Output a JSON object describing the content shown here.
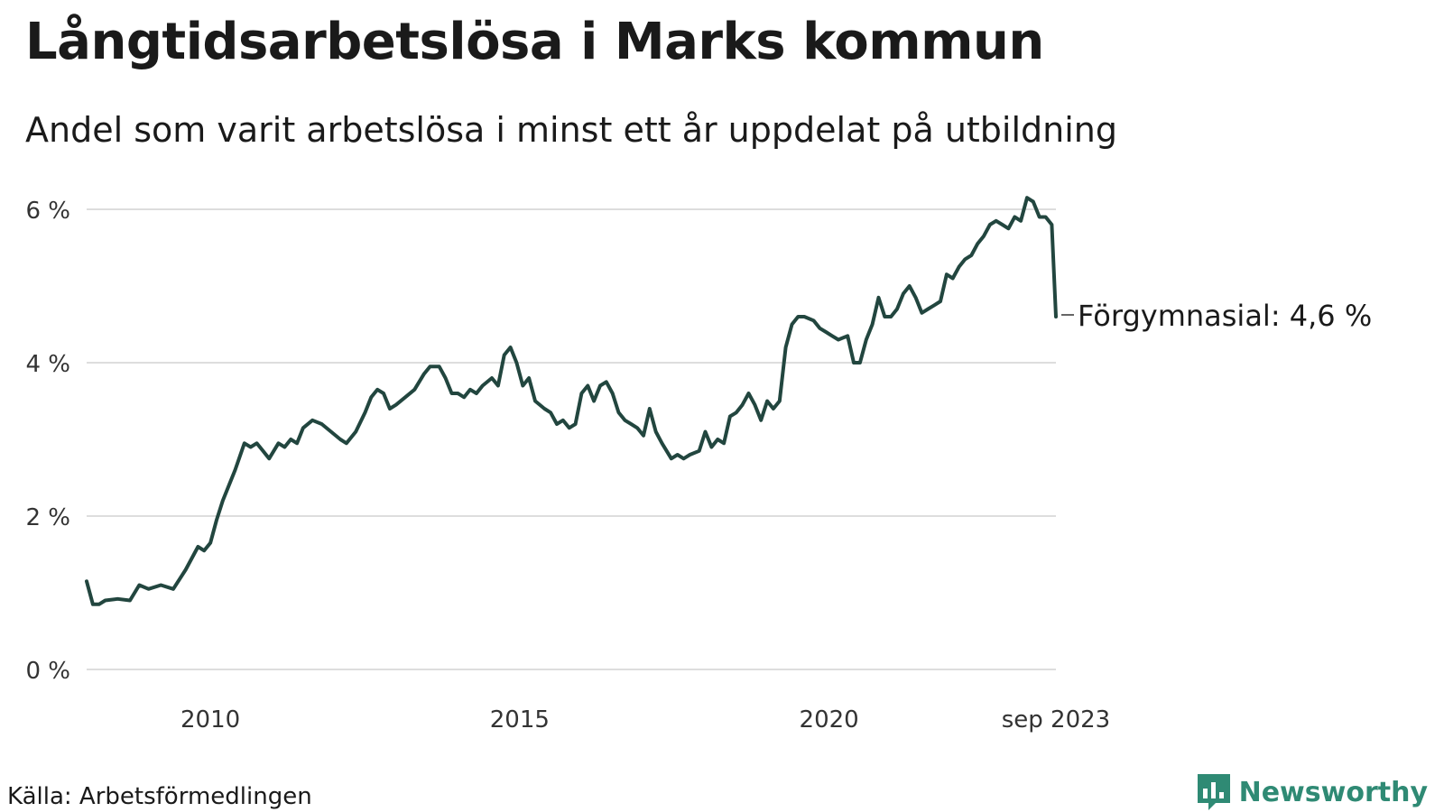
{
  "header": {
    "title": "Långtidsarbetslösa i Marks kommun",
    "subtitle": "Andel som varit arbetslösa i minst ett år uppdelat på utbildning"
  },
  "footer": {
    "source": "Källa: Arbetsförmedlingen",
    "brand": "Newsworthy",
    "brand_icon": "bar-chart-icon",
    "brand_color": "#2f8a74"
  },
  "chart_data": {
    "type": "line",
    "title": "Långtidsarbetslösa i Marks kommun",
    "subtitle": "Andel som varit arbetslösa i minst ett år uppdelat på utbildning",
    "xlabel": "",
    "ylabel": "",
    "x_start": 2008.0,
    "x_end": 2023.667,
    "xlim": [
      2008.0,
      2023.667
    ],
    "ylim": [
      0,
      6.3
    ],
    "y_ticks": [
      0,
      2,
      4,
      6
    ],
    "y_tick_labels": [
      "0 %",
      "2 %",
      "4 %",
      "6 %"
    ],
    "x_ticks": [
      2010,
      2015,
      2020,
      2023.667
    ],
    "x_tick_labels": [
      "2010",
      "2015",
      "2020",
      "sep 2023"
    ],
    "grid": true,
    "legend": "direct labels at line ends (right)",
    "series": [
      {
        "name": "Förgymnasial",
        "end_label": "Förgymnasial: 4,6 %",
        "color": "#22463f",
        "points": [
          [
            2008.0,
            1.15
          ],
          [
            2008.1,
            0.85
          ],
          [
            2008.2,
            0.85
          ],
          [
            2008.3,
            0.9
          ],
          [
            2008.5,
            0.92
          ],
          [
            2008.7,
            0.9
          ],
          [
            2008.85,
            1.1
          ],
          [
            2009.0,
            1.05
          ],
          [
            2009.2,
            1.1
          ],
          [
            2009.4,
            1.05
          ],
          [
            2009.6,
            1.3
          ],
          [
            2009.8,
            1.6
          ],
          [
            2009.9,
            1.55
          ],
          [
            2010.0,
            1.65
          ],
          [
            2010.1,
            1.95
          ],
          [
            2010.2,
            2.2
          ],
          [
            2010.4,
            2.6
          ],
          [
            2010.55,
            2.95
          ],
          [
            2010.65,
            2.9
          ],
          [
            2010.75,
            2.95
          ],
          [
            2010.85,
            2.85
          ],
          [
            2010.95,
            2.75
          ],
          [
            2011.1,
            2.95
          ],
          [
            2011.2,
            2.9
          ],
          [
            2011.3,
            3.0
          ],
          [
            2011.4,
            2.95
          ],
          [
            2011.5,
            3.15
          ],
          [
            2011.65,
            3.25
          ],
          [
            2011.8,
            3.2
          ],
          [
            2011.95,
            3.1
          ],
          [
            2012.1,
            3.0
          ],
          [
            2012.2,
            2.95
          ],
          [
            2012.35,
            3.1
          ],
          [
            2012.5,
            3.35
          ],
          [
            2012.6,
            3.55
          ],
          [
            2012.7,
            3.65
          ],
          [
            2012.8,
            3.6
          ],
          [
            2012.9,
            3.4
          ],
          [
            2013.0,
            3.45
          ],
          [
            2013.15,
            3.55
          ],
          [
            2013.3,
            3.65
          ],
          [
            2013.45,
            3.85
          ],
          [
            2013.55,
            3.95
          ],
          [
            2013.7,
            3.95
          ],
          [
            2013.8,
            3.8
          ],
          [
            2013.9,
            3.6
          ],
          [
            2014.0,
            3.6
          ],
          [
            2014.1,
            3.55
          ],
          [
            2014.2,
            3.65
          ],
          [
            2014.3,
            3.6
          ],
          [
            2014.4,
            3.7
          ],
          [
            2014.55,
            3.8
          ],
          [
            2014.65,
            3.7
          ],
          [
            2014.75,
            4.1
          ],
          [
            2014.85,
            4.2
          ],
          [
            2014.95,
            4.0
          ],
          [
            2015.05,
            3.7
          ],
          [
            2015.15,
            3.8
          ],
          [
            2015.25,
            3.5
          ],
          [
            2015.4,
            3.4
          ],
          [
            2015.5,
            3.35
          ],
          [
            2015.6,
            3.2
          ],
          [
            2015.7,
            3.25
          ],
          [
            2015.8,
            3.15
          ],
          [
            2015.9,
            3.2
          ],
          [
            2016.0,
            3.6
          ],
          [
            2016.1,
            3.7
          ],
          [
            2016.2,
            3.5
          ],
          [
            2016.3,
            3.7
          ],
          [
            2016.4,
            3.75
          ],
          [
            2016.5,
            3.6
          ],
          [
            2016.6,
            3.35
          ],
          [
            2016.7,
            3.25
          ],
          [
            2016.8,
            3.2
          ],
          [
            2016.9,
            3.15
          ],
          [
            2017.0,
            3.05
          ],
          [
            2017.1,
            3.4
          ],
          [
            2017.2,
            3.1
          ],
          [
            2017.3,
            2.95
          ],
          [
            2017.45,
            2.75
          ],
          [
            2017.55,
            2.8
          ],
          [
            2017.65,
            2.75
          ],
          [
            2017.75,
            2.8
          ],
          [
            2017.9,
            2.85
          ],
          [
            2018.0,
            3.1
          ],
          [
            2018.1,
            2.9
          ],
          [
            2018.2,
            3.0
          ],
          [
            2018.3,
            2.95
          ],
          [
            2018.4,
            3.3
          ],
          [
            2018.5,
            3.35
          ],
          [
            2018.6,
            3.45
          ],
          [
            2018.7,
            3.6
          ],
          [
            2018.8,
            3.45
          ],
          [
            2018.9,
            3.25
          ],
          [
            2019.0,
            3.5
          ],
          [
            2019.1,
            3.4
          ],
          [
            2019.2,
            3.5
          ],
          [
            2019.3,
            4.2
          ],
          [
            2019.4,
            4.5
          ],
          [
            2019.5,
            4.6
          ],
          [
            2019.6,
            4.6
          ],
          [
            2019.75,
            4.55
          ],
          [
            2019.85,
            4.45
          ],
          [
            2019.95,
            4.4
          ],
          [
            2020.05,
            4.35
          ],
          [
            2020.15,
            4.3
          ],
          [
            2020.3,
            4.35
          ],
          [
            2020.4,
            4.0
          ],
          [
            2020.5,
            4.0
          ],
          [
            2020.6,
            4.3
          ],
          [
            2020.7,
            4.5
          ],
          [
            2020.8,
            4.85
          ],
          [
            2020.9,
            4.6
          ],
          [
            2021.0,
            4.6
          ],
          [
            2021.1,
            4.7
          ],
          [
            2021.2,
            4.9
          ],
          [
            2021.3,
            5.0
          ],
          [
            2021.4,
            4.85
          ],
          [
            2021.5,
            4.65
          ],
          [
            2021.6,
            4.7
          ],
          [
            2021.7,
            4.75
          ],
          [
            2021.8,
            4.8
          ],
          [
            2021.9,
            5.15
          ],
          [
            2022.0,
            5.1
          ],
          [
            2022.1,
            5.25
          ],
          [
            2022.2,
            5.35
          ],
          [
            2022.3,
            5.4
          ],
          [
            2022.4,
            5.55
          ],
          [
            2022.5,
            5.65
          ],
          [
            2022.6,
            5.8
          ],
          [
            2022.7,
            5.85
          ],
          [
            2022.8,
            5.8
          ],
          [
            2022.9,
            5.75
          ],
          [
            2023.0,
            5.9
          ],
          [
            2023.1,
            5.85
          ],
          [
            2023.2,
            6.15
          ],
          [
            2023.3,
            6.1
          ],
          [
            2023.4,
            5.9
          ],
          [
            2023.5,
            5.9
          ],
          [
            2023.6,
            5.8
          ],
          [
            2023.667,
            4.6
          ]
        ]
      }
    ]
  }
}
